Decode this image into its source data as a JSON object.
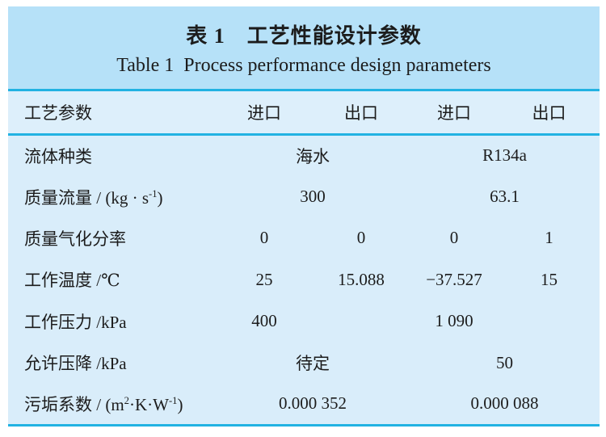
{
  "colors": {
    "band_bg": "#b6e1f8",
    "table_bg": "#d9edfa",
    "header_bg": "#ddeffb",
    "rule": "#22b2e2",
    "text": "#1c1c1c"
  },
  "caption": {
    "zh": "表 1　工艺性能设计参数",
    "en": "Table 1 Process performance design parameters"
  },
  "table": {
    "header": [
      "工艺参数",
      "进口",
      "出口",
      "进口",
      "出口"
    ],
    "rows": [
      {
        "label_parts": [
          {
            "text": "流体种类"
          }
        ],
        "cells": [
          "海水",
          "R134a"
        ]
      },
      {
        "label_parts": [
          {
            "text": "质量流量 / (kg · s"
          },
          {
            "sup": "-1"
          },
          {
            "text": ")"
          }
        ],
        "cells": [
          "300",
          "63.1"
        ]
      },
      {
        "label_parts": [
          {
            "text": "质量气化分率"
          }
        ],
        "cells": [
          "0",
          "0",
          "0",
          "1"
        ]
      },
      {
        "label_parts": [
          {
            "text": "工作温度 /℃"
          }
        ],
        "cells": [
          "25",
          "15.088",
          "−37.527",
          "15"
        ]
      },
      {
        "label_parts": [
          {
            "text": "工作压力 /kPa"
          }
        ],
        "cells": [
          "400",
          "",
          "1 090",
          ""
        ]
      },
      {
        "label_parts": [
          {
            "text": "允许压降 /kPa"
          }
        ],
        "cells": [
          "待定",
          "50"
        ]
      },
      {
        "label_parts": [
          {
            "text": "污垢系数 / (m"
          },
          {
            "sup": "2"
          },
          {
            "text": "·K·W"
          },
          {
            "sup": "-1"
          },
          {
            "text": ")"
          }
        ],
        "cells": [
          "0.000 352",
          "0.000 088"
        ]
      }
    ]
  }
}
